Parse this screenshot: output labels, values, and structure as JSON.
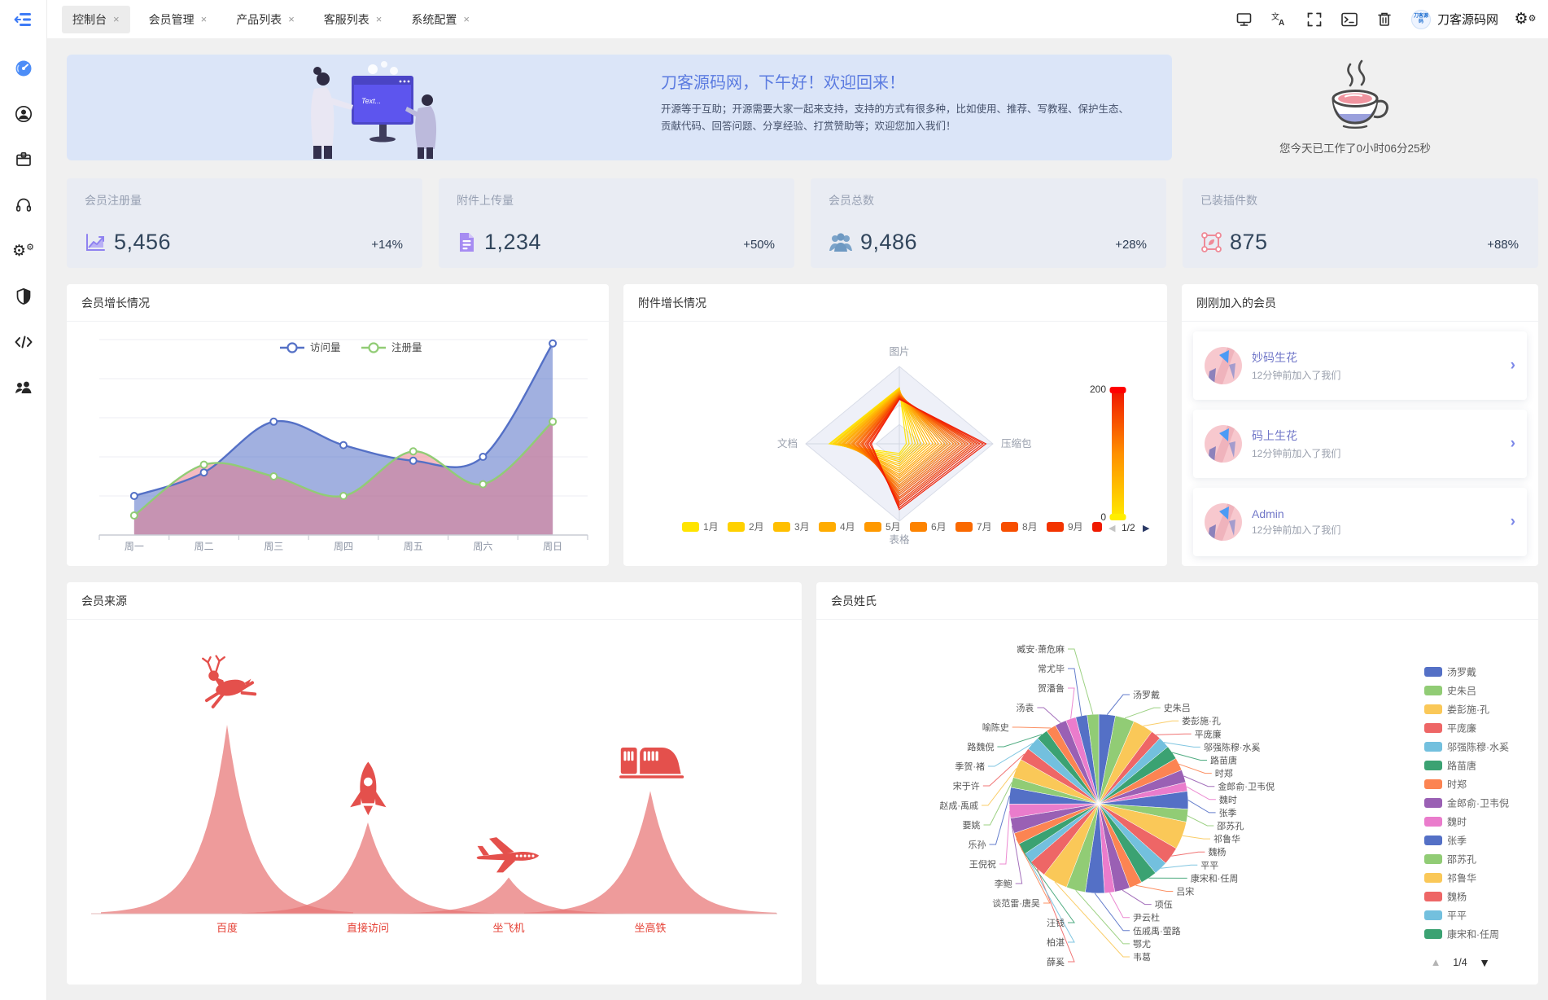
{
  "tabs": [
    {
      "label": "控制台",
      "active": true
    },
    {
      "label": "会员管理",
      "active": false
    },
    {
      "label": "产品列表",
      "active": false
    },
    {
      "label": "客服列表",
      "active": false
    },
    {
      "label": "系统配置",
      "active": false
    }
  ],
  "tab_close_glyph": "×",
  "brand": {
    "name": "刀客源码网",
    "logo_text": "刀客源码"
  },
  "topbar_icons": [
    "monitor-icon",
    "translate-icon",
    "fullscreen-icon",
    "terminal-icon",
    "trash-icon",
    "settings-gears-icon"
  ],
  "sidebar_icons": [
    "dashboard-icon",
    "user-icon",
    "package-icon",
    "headset-icon",
    "gears-icon",
    "shield-icon",
    "code-icon",
    "team-icon"
  ],
  "welcome": {
    "title": "刀客源码网，下午好！欢迎回来！",
    "desc": "开源等于互助；开源需要大家一起来支持，支持的方式有很多种，比如使用、推荐、写教程、保护生态、贡献代码、回答问题、分享经验、打赏赞助等；欢迎您加入我们！",
    "screen_text": "Text..."
  },
  "work_status": {
    "text": "您今天已工作了0小时06分25秒",
    "icon": "coffee-icon"
  },
  "stats": [
    {
      "label": "会员注册量",
      "value": "5,456",
      "delta": "+14%",
      "icon": "area-chart-icon",
      "icon_color": "#8f82f0"
    },
    {
      "label": "附件上传量",
      "value": "1,234",
      "delta": "+50%",
      "icon": "document-icon",
      "icon_color": "#a07ef0"
    },
    {
      "label": "会员总数",
      "value": "9,486",
      "delta": "+28%",
      "icon": "users-icon",
      "icon_color": "#7ba3c9"
    },
    {
      "label": "已装插件数",
      "value": "875",
      "delta": "+88%",
      "icon": "plugin-icon",
      "icon_color": "#ef8a97"
    }
  ],
  "panels": {
    "members_title": "刚刚加入的会员"
  },
  "members": [
    {
      "name": "妙码生花",
      "joined": "12分钟前加入了我们"
    },
    {
      "name": "码上生花",
      "joined": "12分钟前加入了我们"
    },
    {
      "name": "Admin",
      "joined": "12分钟前加入了我们"
    }
  ],
  "chart_data": [
    {
      "id": "member_growth",
      "type": "area",
      "title": "会员增长情况",
      "categories": [
        "周一",
        "周二",
        "周三",
        "周四",
        "周五",
        "周六",
        "周日"
      ],
      "ylim": [
        0,
        250
      ],
      "grid_rows": 5,
      "legend_position": "top-center",
      "series": [
        {
          "name": "访问量",
          "color": "#5470c6",
          "area": "rgba(84,112,198,0.55)",
          "values": [
            50,
            80,
            145,
            115,
            95,
            100,
            245
          ]
        },
        {
          "name": "注册量",
          "color": "#91cc75",
          "area": "rgba(236,118,132,0.50)",
          "values": [
            25,
            90,
            75,
            50,
            107,
            65,
            145
          ]
        }
      ]
    },
    {
      "id": "attachment_growth",
      "type": "radar",
      "title": "附件增长情况",
      "indicators": [
        {
          "name": "图片",
          "max": 200
        },
        {
          "name": "压缩包",
          "max": 200
        },
        {
          "name": "表格",
          "max": 200
        },
        {
          "name": "文档",
          "max": 200
        }
      ],
      "legend_months": [
        "1月",
        "2月",
        "3月",
        "4月",
        "5月",
        "6月",
        "7月",
        "8月",
        "9月"
      ],
      "legend_page": "1/2",
      "visual_map": {
        "min": 0,
        "max": 200,
        "color_stops": [
          "#ffe400",
          "#ff9000",
          "#f01a00"
        ]
      },
      "series_values": [
        [
          145,
          15,
          25,
          150
        ],
        [
          144,
          21,
          30,
          147
        ],
        [
          143,
          28,
          36,
          143
        ],
        [
          142,
          34,
          41,
          140
        ],
        [
          141,
          40,
          46,
          137
        ],
        [
          139,
          46,
          52,
          133
        ],
        [
          138,
          53,
          57,
          130
        ],
        [
          137,
          59,
          63,
          127
        ],
        [
          136,
          65,
          68,
          123
        ],
        [
          135,
          72,
          73,
          120
        ],
        [
          134,
          78,
          79,
          117
        ],
        [
          133,
          84,
          84,
          113
        ],
        [
          132,
          91,
          89,
          110
        ],
        [
          131,
          97,
          95,
          107
        ],
        [
          129,
          103,
          100,
          103
        ],
        [
          128,
          109,
          106,
          100
        ],
        [
          127,
          116,
          111,
          97
        ],
        [
          126,
          122,
          116,
          93
        ],
        [
          125,
          128,
          122,
          90
        ],
        [
          124,
          135,
          127,
          87
        ],
        [
          123,
          141,
          132,
          83
        ],
        [
          122,
          147,
          138,
          80
        ],
        [
          121,
          154,
          143,
          77
        ],
        [
          119,
          160,
          149,
          73
        ],
        [
          118,
          166,
          154,
          70
        ],
        [
          117,
          172,
          159,
          67
        ],
        [
          116,
          179,
          165,
          63
        ],
        [
          115,
          185,
          170,
          60
        ]
      ]
    },
    {
      "id": "member_source",
      "type": "pictorial-bar",
      "title": "会员来源",
      "categories": [
        "百度",
        "直接访问",
        "坐飞机",
        "坐高铁"
      ],
      "values": [
        120,
        58,
        23,
        78
      ],
      "icons": [
        "deer-icon",
        "rocket-icon",
        "plane-icon",
        "train-icon"
      ],
      "peak_color": "rgba(231,116,116,0.72)",
      "icon_color": "#e4504c",
      "label_color": "#e54035"
    },
    {
      "id": "member_surname",
      "type": "pie",
      "title": "会员姓氏",
      "palette": [
        "#5470c6",
        "#91cc75",
        "#fac858",
        "#ee6666",
        "#73c0de",
        "#3ba272",
        "#fc8452",
        "#9a60b4",
        "#ea7ccc"
      ],
      "legend_page": "1/4",
      "legend_visible_count": 15,
      "items": [
        {
          "name": "汤罗戴",
          "value": 1.3
        },
        {
          "name": "史朱吕",
          "value": 1.5
        },
        {
          "name": "娄彭施·孔",
          "value": 1.6
        },
        {
          "name": "平庞廉",
          "value": 0.8
        },
        {
          "name": "邬强陈穆·水奚",
          "value": 0.9
        },
        {
          "name": "路苗唐",
          "value": 1.1
        },
        {
          "name": "时郑",
          "value": 1.0
        },
        {
          "name": "金郎俞·卫韦倪",
          "value": 1.0
        },
        {
          "name": "魏时",
          "value": 0.7
        },
        {
          "name": "张季",
          "value": 1.4
        },
        {
          "name": "邵苏孔",
          "value": 1.0
        },
        {
          "name": "祁鲁华",
          "value": 2.2
        },
        {
          "name": "魏杨",
          "value": 1.4
        },
        {
          "name": "平平",
          "value": 1.1
        },
        {
          "name": "康宋和·任周",
          "value": 1.3
        },
        {
          "name": "吕宋",
          "value": 1.0
        },
        {
          "name": "项伍",
          "value": 1.2
        },
        {
          "name": "尹云杜",
          "value": 0.8
        },
        {
          "name": "伍戚禹·萤路",
          "value": 1.5
        },
        {
          "name": "鄂尤",
          "value": 1.5
        },
        {
          "name": "韦葛",
          "value": 2.0
        },
        {
          "name": "薛奚",
          "value": 1.4
        },
        {
          "name": "柏湛",
          "value": 0.8
        },
        {
          "name": "汪钱",
          "value": 0.9
        },
        {
          "name": "谈范雷·唐吴",
          "value": 0.9
        },
        {
          "name": "李鲍",
          "value": 1.2
        },
        {
          "name": "王倪祝",
          "value": 1.1
        },
        {
          "name": "乐孙",
          "value": 1.3
        },
        {
          "name": "要姚",
          "value": 0.8
        },
        {
          "name": "赵成·禹戚",
          "value": 1.5
        },
        {
          "name": "宋于许",
          "value": 1.0
        },
        {
          "name": "季贺·褚",
          "value": 1.1
        },
        {
          "name": "路魏倪",
          "value": 0.9
        },
        {
          "name": "喻陈史",
          "value": 0.8
        },
        {
          "name": "汤袁",
          "value": 0.9
        },
        {
          "name": "贺潘鲁",
          "value": 0.8
        },
        {
          "name": "常尤毕",
          "value": 0.9
        },
        {
          "name": "臧安·萧危麻",
          "value": 0.9
        }
      ]
    }
  ]
}
